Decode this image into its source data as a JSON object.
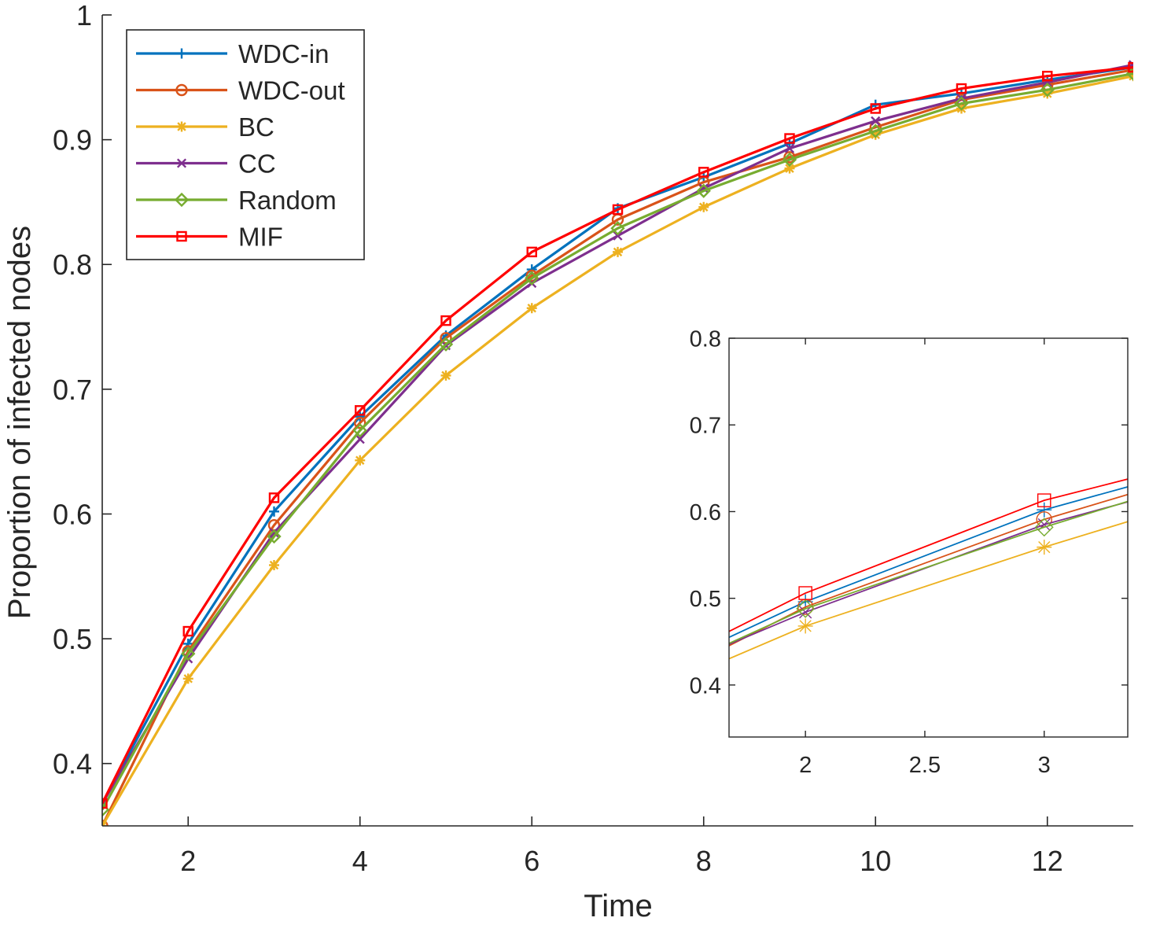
{
  "chart_data": [
    {
      "type": "line",
      "title": "",
      "xlabel": "Time",
      "ylabel": "Proportion of infected nodes",
      "xlim": [
        1,
        13
      ],
      "ylim": [
        0.35,
        1.0
      ],
      "xticks": [
        2,
        4,
        6,
        8,
        10,
        12
      ],
      "yticks": [
        0.4,
        0.5,
        0.6,
        0.7,
        0.8,
        0.9,
        1
      ],
      "ytick_labels": [
        "0.4",
        "0.5",
        "0.6",
        "0.7",
        "0.8",
        "0.9",
        "1"
      ],
      "grid": false,
      "legend_position": "top-left",
      "x": [
        1,
        2,
        3,
        4,
        5,
        6,
        7,
        8,
        9,
        10,
        11,
        12,
        13
      ],
      "series": [
        {
          "name": "WDC-in",
          "color": "#0072BD",
          "marker": "plus",
          "values": [
            0.368,
            0.496,
            0.602,
            0.678,
            0.743,
            0.796,
            0.845,
            0.87,
            0.897,
            0.928,
            0.937,
            0.948,
            0.958
          ]
        },
        {
          "name": "WDC-out",
          "color": "#D95319",
          "marker": "circle",
          "values": [
            0.35,
            0.49,
            0.591,
            0.673,
            0.741,
            0.791,
            0.836,
            0.866,
            0.886,
            0.91,
            0.932,
            0.944,
            0.956
          ]
        },
        {
          "name": "BC",
          "color": "#EDB120",
          "marker": "asterisk",
          "values": [
            0.35,
            0.468,
            0.559,
            0.643,
            0.711,
            0.765,
            0.81,
            0.846,
            0.877,
            0.904,
            0.925,
            0.937,
            0.951
          ]
        },
        {
          "name": "CC",
          "color": "#7E2F8E",
          "marker": "x",
          "values": [
            0.368,
            0.484,
            0.585,
            0.66,
            0.735,
            0.785,
            0.823,
            0.861,
            0.893,
            0.915,
            0.933,
            0.946,
            0.96
          ]
        },
        {
          "name": "Random",
          "color": "#77AC30",
          "marker": "diamond",
          "values": [
            0.363,
            0.488,
            0.582,
            0.667,
            0.736,
            0.789,
            0.829,
            0.859,
            0.884,
            0.907,
            0.929,
            0.94,
            0.953
          ]
        },
        {
          "name": "MIF",
          "color": "#FF0000",
          "marker": "square",
          "values": [
            0.368,
            0.506,
            0.613,
            0.683,
            0.755,
            0.81,
            0.844,
            0.874,
            0.901,
            0.925,
            0.941,
            0.951,
            0.958
          ]
        }
      ]
    },
    {
      "type": "line",
      "title": "",
      "xlabel": "",
      "ylabel": "",
      "xlim": [
        1.68,
        3.35
      ],
      "ylim": [
        0.34,
        0.8
      ],
      "xticks": [
        2,
        2.5,
        3
      ],
      "yticks": [
        0.4,
        0.5,
        0.6,
        0.7,
        0.8
      ],
      "grid": false,
      "x": [
        1,
        2,
        3,
        4
      ],
      "series": [
        {
          "name": "WDC-in",
          "color": "#0072BD",
          "marker": "plus",
          "values": [
            0.368,
            0.496,
            0.602,
            0.678
          ]
        },
        {
          "name": "WDC-out",
          "color": "#D95319",
          "marker": "circle",
          "values": [
            0.35,
            0.49,
            0.591,
            0.673
          ]
        },
        {
          "name": "BC",
          "color": "#EDB120",
          "marker": "asterisk",
          "values": [
            0.35,
            0.468,
            0.559,
            0.643
          ]
        },
        {
          "name": "CC",
          "color": "#7E2F8E",
          "marker": "x",
          "values": [
            0.368,
            0.484,
            0.585,
            0.66
          ]
        },
        {
          "name": "Random",
          "color": "#77AC30",
          "marker": "diamond",
          "values": [
            0.363,
            0.488,
            0.582,
            0.667
          ]
        },
        {
          "name": "MIF",
          "color": "#FF0000",
          "marker": "square",
          "values": [
            0.368,
            0.506,
            0.613,
            0.683
          ]
        }
      ]
    }
  ]
}
